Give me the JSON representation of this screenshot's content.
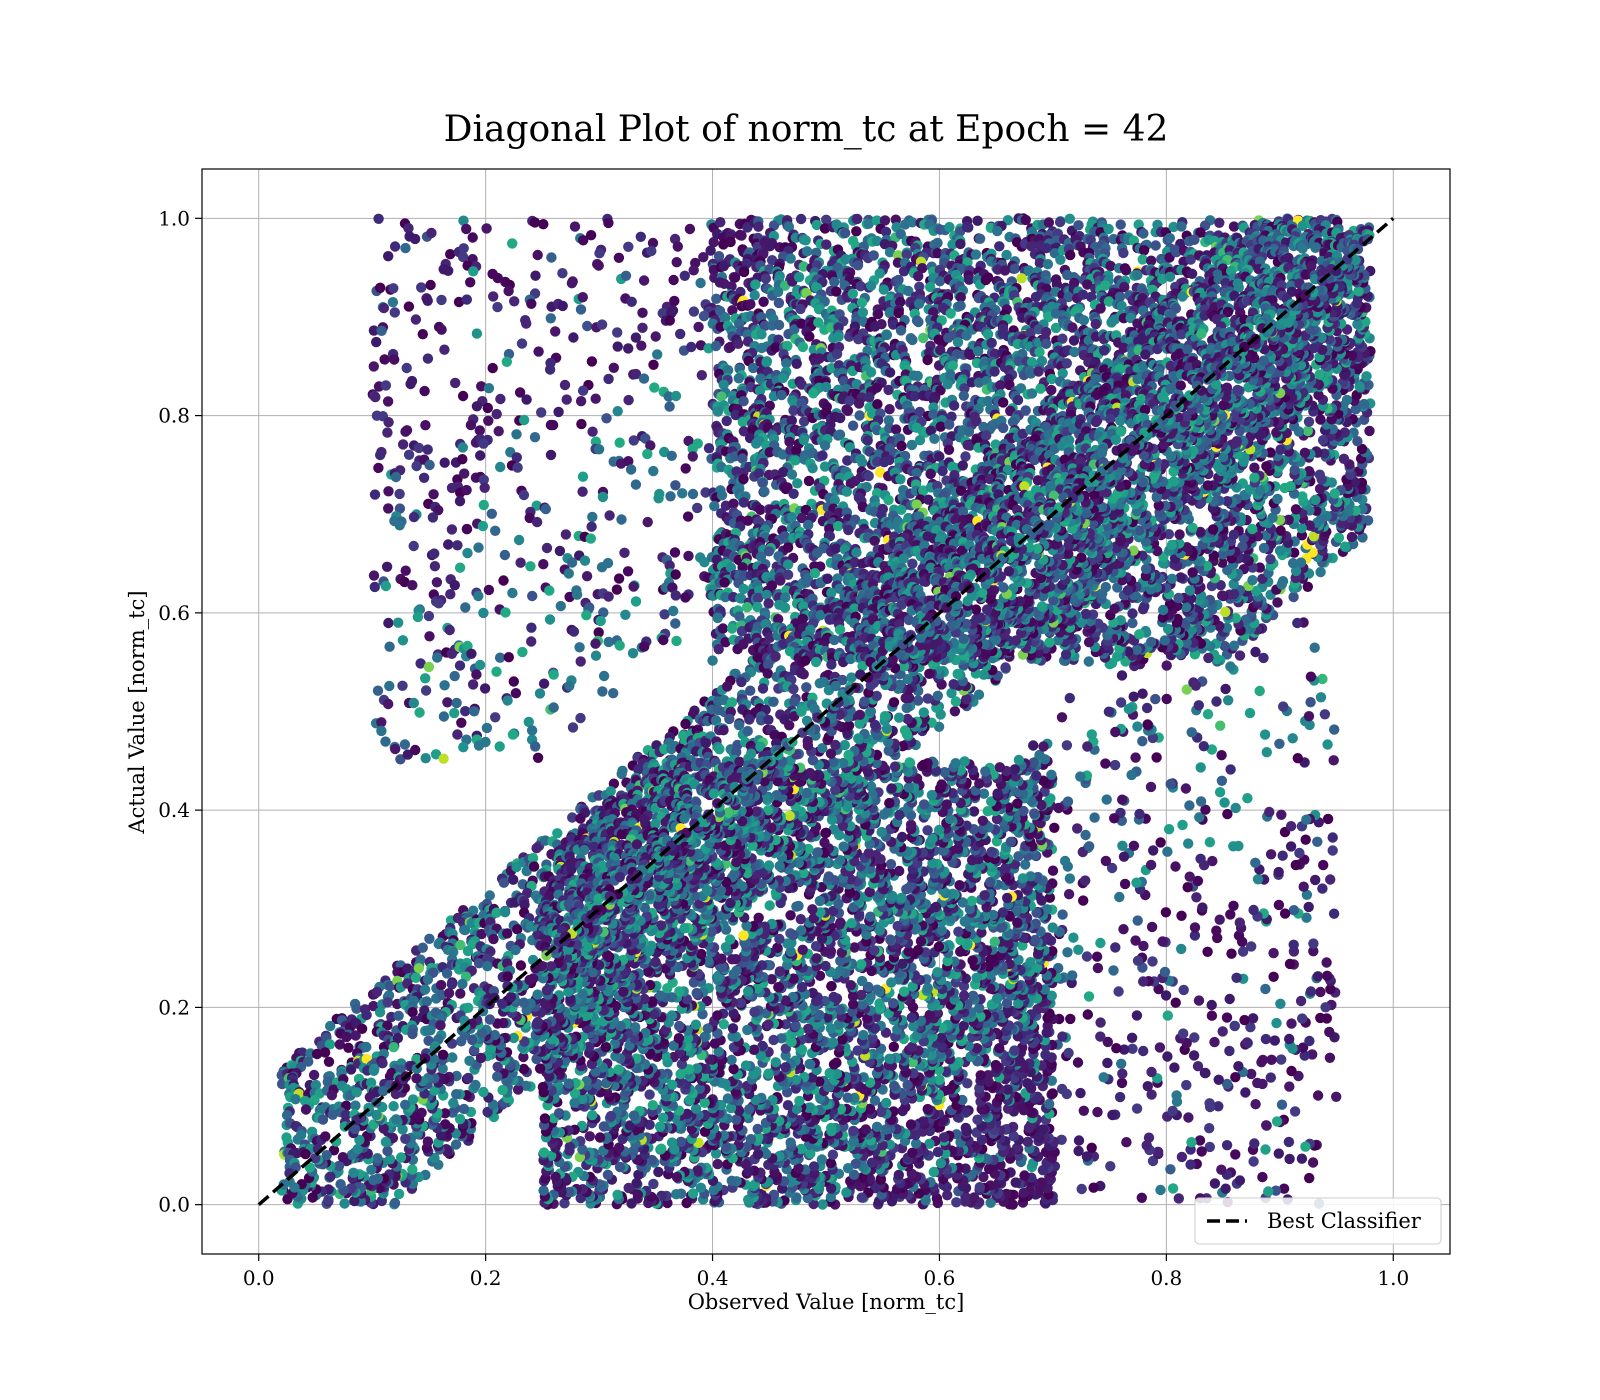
{
  "chart_data": {
    "type": "scatter",
    "title": "Diagonal Plot of norm_tc at Epoch = 42",
    "xlabel": "Observed Value [norm_tc]",
    "ylabel": "Actual Value [norm_tc]",
    "xlim": [
      -0.05,
      1.05
    ],
    "ylim": [
      -0.05,
      1.05
    ],
    "x_ticks": [
      "0.0",
      "0.2",
      "0.4",
      "0.6",
      "0.8",
      "1.0"
    ],
    "y_ticks": [
      "0.0",
      "0.2",
      "0.4",
      "0.6",
      "0.8",
      "1.0"
    ],
    "grid": true,
    "colormap": "viridis",
    "point_clusters": [
      {
        "region": "diagonal band",
        "x_range": [
          0.02,
          0.97
        ],
        "y_offset_range": [
          -0.12,
          0.12
        ],
        "count": 4200
      },
      {
        "region": "upper-mid block",
        "x_range": [
          0.4,
          0.98
        ],
        "y_range": [
          0.55,
          1.0
        ],
        "count": 5200
      },
      {
        "region": "lower-mid block",
        "x_range": [
          0.25,
          0.7
        ],
        "y_range": [
          0.0,
          0.45
        ],
        "count": 4800
      },
      {
        "region": "upper-left sparse",
        "x_range": [
          0.1,
          0.45
        ],
        "y_range": [
          0.45,
          1.0
        ],
        "count": 700
      },
      {
        "region": "lower-right sparse",
        "x_range": [
          0.65,
          0.95
        ],
        "y_range": [
          0.0,
          0.6
        ],
        "count": 650
      }
    ],
    "reference_line": {
      "label": "Best Classifier",
      "x": [
        0.0,
        1.0
      ],
      "y": [
        0.0,
        1.0
      ],
      "style": "dashed",
      "color": "#000000"
    },
    "legend": {
      "position": "lower-right",
      "entries": [
        "Best Classifier"
      ]
    }
  }
}
